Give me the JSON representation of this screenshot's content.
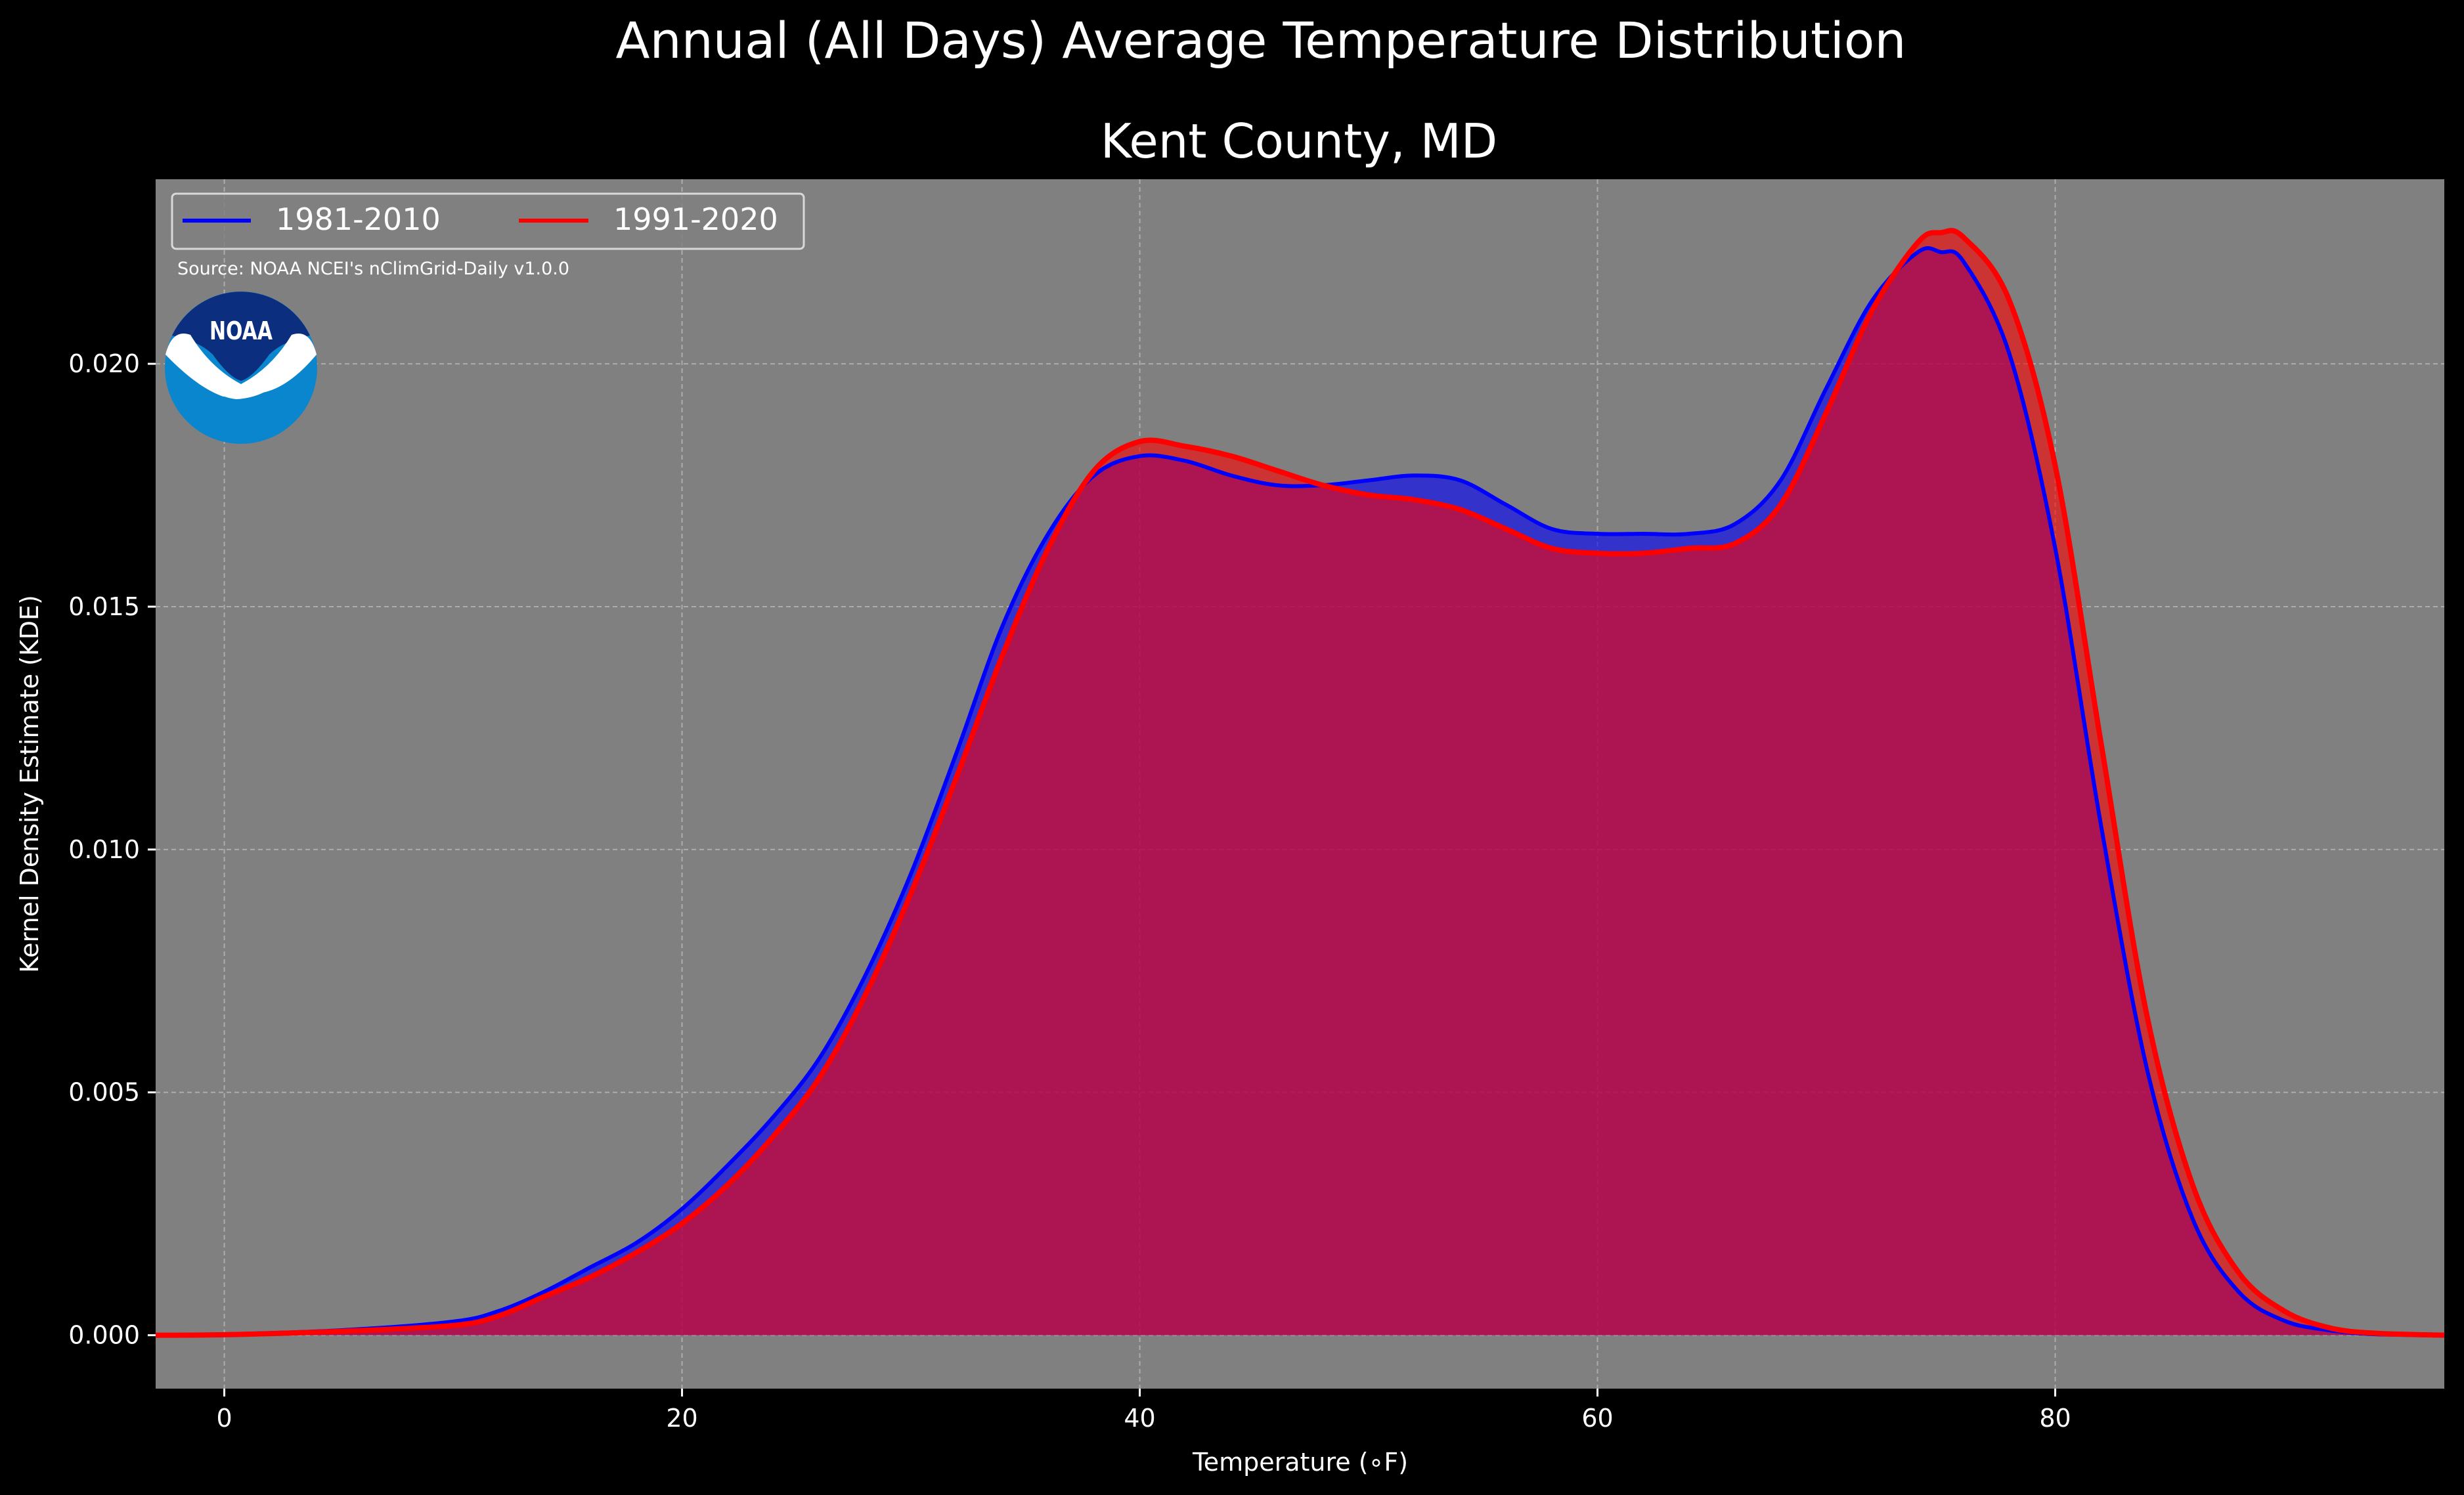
{
  "chart_data": {
    "type": "area",
    "suptitle": "Annual (All Days) Average Temperature Distribution",
    "title": "Kent County, MD",
    "xlabel": "Temperature (∘F)",
    "ylabel": "Kernel Density Estimate (KDE)",
    "xlim": [
      -3,
      97
    ],
    "ylim": [
      -0.0011,
      0.0238
    ],
    "x_ticks": [
      0,
      20,
      40,
      60,
      80
    ],
    "x_tick_labels": [
      "0",
      "20",
      "40",
      "60",
      "80"
    ],
    "y_ticks": [
      0.0,
      0.005,
      0.01,
      0.015,
      0.02
    ],
    "y_tick_labels": [
      "0.000",
      "0.005",
      "0.010",
      "0.015",
      "0.020"
    ],
    "grid": true,
    "legend_placement": "top-left",
    "source_note": "Source: NOAA NCEI's nClimGrid-Daily v1.0.0",
    "logo_text": "NOAA",
    "colors": {
      "figure_bg": "#000000",
      "axes_bg": "#808080",
      "series_1": "#0000ff",
      "series_2": "#ff0000"
    },
    "series": [
      {
        "name": "1981-2010",
        "color": "#0000ff",
        "x": [
          -3,
          0,
          5,
          10,
          12,
          14,
          16,
          18,
          20,
          22,
          24,
          26,
          28,
          30,
          32,
          34,
          36,
          38,
          40,
          42,
          44,
          46,
          48,
          50,
          52,
          54,
          56,
          58,
          60,
          62,
          64,
          66,
          68,
          70,
          72,
          74,
          75,
          76,
          78,
          80,
          82,
          84,
          86,
          88,
          90,
          92,
          94,
          97
        ],
        "values": [
          0.0,
          2e-05,
          0.0001,
          0.00028,
          0.0005,
          0.0009,
          0.0014,
          0.0019,
          0.0026,
          0.0035,
          0.0045,
          0.0057,
          0.0074,
          0.0095,
          0.012,
          0.0146,
          0.0165,
          0.0177,
          0.0181,
          0.018,
          0.0177,
          0.0175,
          0.0175,
          0.0176,
          0.0177,
          0.0176,
          0.0171,
          0.0166,
          0.0165,
          0.0165,
          0.0165,
          0.0167,
          0.0176,
          0.0195,
          0.0213,
          0.0223,
          0.0223,
          0.0221,
          0.0202,
          0.0162,
          0.0105,
          0.0055,
          0.0024,
          0.0009,
          0.0003,
          0.0001,
          2e-05,
          0.0
        ]
      },
      {
        "name": "1991-2020",
        "color": "#ff0000",
        "x": [
          -3,
          0,
          5,
          10,
          12,
          14,
          16,
          18,
          20,
          22,
          24,
          26,
          28,
          30,
          32,
          34,
          36,
          38,
          40,
          42,
          44,
          46,
          48,
          50,
          52,
          54,
          56,
          58,
          60,
          62,
          64,
          66,
          68,
          70,
          72,
          74,
          75,
          76,
          78,
          80,
          82,
          84,
          86,
          88,
          90,
          92,
          94,
          97
        ],
        "values": [
          0.0,
          1e-05,
          8e-05,
          0.0002,
          0.0004,
          0.0008,
          0.0012,
          0.0017,
          0.0023,
          0.0031,
          0.0041,
          0.0053,
          0.007,
          0.0091,
          0.0115,
          0.014,
          0.0162,
          0.0178,
          0.0184,
          0.0183,
          0.0181,
          0.0178,
          0.0175,
          0.0173,
          0.0172,
          0.017,
          0.0166,
          0.0162,
          0.0161,
          0.0161,
          0.0162,
          0.0163,
          0.0171,
          0.019,
          0.0211,
          0.0225,
          0.0227,
          0.0226,
          0.0213,
          0.0179,
          0.0122,
          0.0066,
          0.0031,
          0.0013,
          0.0005,
          0.00015,
          4e-05,
          0.0
        ]
      }
    ]
  }
}
